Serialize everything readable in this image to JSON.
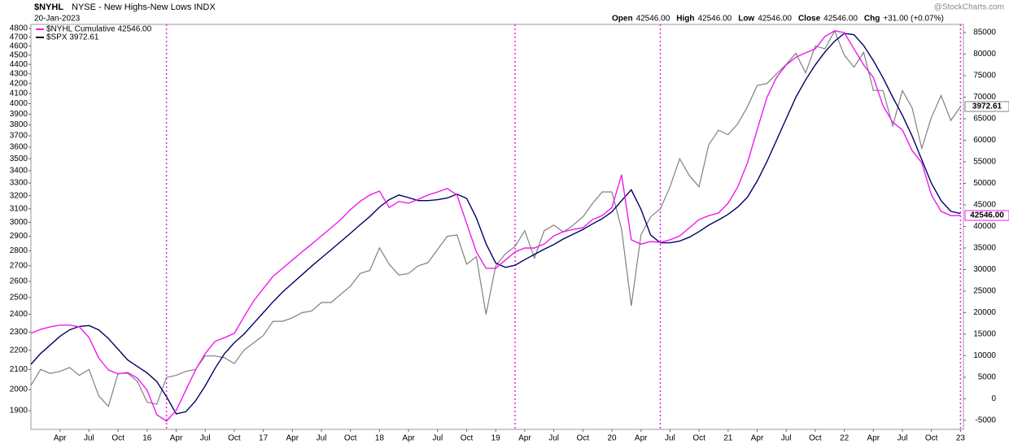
{
  "chart_data": {
    "type": "line",
    "title": "$NYHL",
    "subtitle": "NYSE - New Highs-New Lows INDX",
    "date": "20-Jan-2023",
    "source": "@StockCharts.com",
    "quote": [
      {
        "label": "Open",
        "value": "42546.00"
      },
      {
        "label": "High",
        "value": "42546.00"
      },
      {
        "label": "Low",
        "value": "42546.00"
      },
      {
        "label": "Close",
        "value": "42546.00"
      },
      {
        "label": "Chg",
        "value": "+31.00 (+0.07%)"
      }
    ],
    "x": [
      "2015-01",
      "2015-02",
      "2015-03",
      "2015-04",
      "2015-05",
      "2015-06",
      "2015-07",
      "2015-08",
      "2015-09",
      "2015-10",
      "2015-11",
      "2015-12",
      "2016-01",
      "2016-02",
      "2016-03",
      "2016-04",
      "2016-05",
      "2016-06",
      "2016-07",
      "2016-08",
      "2016-09",
      "2016-10",
      "2016-11",
      "2016-12",
      "2017-01",
      "2017-02",
      "2017-03",
      "2017-04",
      "2017-05",
      "2017-06",
      "2017-07",
      "2017-08",
      "2017-09",
      "2017-10",
      "2017-11",
      "2017-12",
      "2018-01",
      "2018-02",
      "2018-03",
      "2018-04",
      "2018-05",
      "2018-06",
      "2018-07",
      "2018-08",
      "2018-09",
      "2018-10",
      "2018-11",
      "2018-12",
      "2019-01",
      "2019-02",
      "2019-03",
      "2019-04",
      "2019-05",
      "2019-06",
      "2019-07",
      "2019-08",
      "2019-09",
      "2019-10",
      "2019-11",
      "2019-12",
      "2020-01",
      "2020-02",
      "2020-03",
      "2020-04",
      "2020-05",
      "2020-06",
      "2020-07",
      "2020-08",
      "2020-09",
      "2020-10",
      "2020-11",
      "2020-12",
      "2021-01",
      "2021-02",
      "2021-03",
      "2021-04",
      "2021-05",
      "2021-06",
      "2021-07",
      "2021-08",
      "2021-09",
      "2021-10",
      "2021-11",
      "2021-12",
      "2022-01",
      "2022-02",
      "2022-03",
      "2022-04",
      "2022-05",
      "2022-06",
      "2022-07",
      "2022-08",
      "2022-09",
      "2022-10",
      "2022-11",
      "2022-12",
      "2023-01"
    ],
    "series": [
      {
        "name": "$SPX 3972.61",
        "color": "#808080",
        "axis": "y",
        "last_label": "3972.61",
        "values": [
          2020,
          2100,
          2080,
          2090,
          2110,
          2070,
          2100,
          1970,
          1920,
          2080,
          2080,
          2040,
          1940,
          1930,
          2060,
          2070,
          2090,
          2100,
          2170,
          2170,
          2160,
          2130,
          2200,
          2240,
          2280,
          2360,
          2360,
          2380,
          2410,
          2420,
          2470,
          2470,
          2520,
          2570,
          2650,
          2670,
          2820,
          2710,
          2640,
          2650,
          2700,
          2720,
          2810,
          2900,
          2910,
          2710,
          2760,
          2400,
          2700,
          2780,
          2830,
          2940,
          2750,
          2940,
          2980,
          2930,
          2980,
          3040,
          3140,
          3230,
          3230,
          2950,
          2450,
          2910,
          3040,
          3100,
          3270,
          3500,
          3360,
          3270,
          3620,
          3750,
          3710,
          3810,
          3970,
          4180,
          4200,
          4300,
          4400,
          4520,
          4310,
          4600,
          4570,
          4770,
          4500,
          4370,
          4530,
          4130,
          4130,
          3790,
          4130,
          3960,
          3590,
          3870,
          4080,
          3840,
          3972.61
        ]
      },
      {
        "name": "$NYHL Cumulative 42546.00",
        "color": "#ee1aee",
        "axis": "y2",
        "last_label": "42546.00",
        "values": [
          15200,
          16100,
          16700,
          17100,
          17100,
          16700,
          14200,
          9500,
          6700,
          5800,
          6100,
          4800,
          2000,
          -3700,
          -5200,
          -2700,
          2000,
          6700,
          10500,
          13300,
          14200,
          15200,
          19000,
          22700,
          25600,
          28400,
          30300,
          32200,
          34100,
          35900,
          37800,
          39700,
          41600,
          43900,
          45800,
          47300,
          48200,
          44400,
          45800,
          45400,
          46300,
          47300,
          48000,
          48800,
          47300,
          40700,
          34100,
          30300,
          30300,
          32200,
          34100,
          35000,
          35000,
          35900,
          37800,
          38800,
          39300,
          39700,
          41600,
          42500,
          44400,
          52000,
          36900,
          35900,
          36500,
          36300,
          36900,
          37800,
          39700,
          41600,
          42500,
          43100,
          45400,
          49200,
          54800,
          62400,
          69900,
          74600,
          77500,
          79300,
          80300,
          81200,
          84100,
          85400,
          85000,
          81200,
          77500,
          74600,
          68000,
          64200,
          62400,
          57600,
          54800,
          47300,
          43500,
          42500,
          42546
        ]
      },
      {
        "color": "#000066",
        "axis": "y2",
        "values": [
          8000,
          10500,
          12500,
          14500,
          16000,
          16800,
          17000,
          16000,
          14000,
          11500,
          9000,
          7500,
          6000,
          4000,
          500,
          -3500,
          -3000,
          -500,
          3000,
          7000,
          10500,
          13000,
          15000,
          17500,
          20000,
          22500,
          24800,
          26800,
          28800,
          30800,
          32700,
          34600,
          36500,
          38400,
          40400,
          42300,
          44500,
          46200,
          47300,
          46700,
          46000,
          46000,
          46200,
          46600,
          47500,
          46500,
          42000,
          36000,
          31500,
          30500,
          31000,
          32300,
          33500,
          34700,
          35800,
          37100,
          38200,
          39300,
          40600,
          41800,
          43400,
          46000,
          48500,
          44000,
          38000,
          36200,
          36200,
          36600,
          37500,
          38800,
          40300,
          41500,
          42800,
          44500,
          46800,
          50500,
          55000,
          60000,
          65000,
          70000,
          74000,
          77500,
          80500,
          83000,
          84800,
          84500,
          82000,
          78500,
          74500,
          70000,
          65800,
          61000,
          55500,
          50000,
          46000,
          43500,
          43000
        ]
      }
    ],
    "yscale": "log",
    "ylim": [
      1816,
      4848
    ],
    "yticks": [
      1900,
      2000,
      2100,
      2200,
      2300,
      2400,
      2500,
      2600,
      2700,
      2800,
      2900,
      3000,
      3100,
      3200,
      3300,
      3400,
      3500,
      3600,
      3700,
      3800,
      3900,
      4000,
      4100,
      4200,
      4300,
      4400,
      4500,
      4600,
      4700,
      4800
    ],
    "y2lim": [
      -7100,
      86900
    ],
    "y2ticks": [
      -5000,
      0,
      5000,
      10000,
      15000,
      20000,
      25000,
      30000,
      35000,
      40000,
      45000,
      50000,
      55000,
      60000,
      65000,
      70000,
      75000,
      80000,
      85000
    ],
    "xticks": [
      {
        "value": "2015-04",
        "label": "Apr"
      },
      {
        "value": "2015-07",
        "label": "Jul"
      },
      {
        "value": "2015-10",
        "label": "Oct"
      },
      {
        "value": "2016-01",
        "label": "16"
      },
      {
        "value": "2016-04",
        "label": "Apr"
      },
      {
        "value": "2016-07",
        "label": "Jul"
      },
      {
        "value": "2016-10",
        "label": "Oct"
      },
      {
        "value": "2017-01",
        "label": "17"
      },
      {
        "value": "2017-04",
        "label": "Apr"
      },
      {
        "value": "2017-07",
        "label": "Jul"
      },
      {
        "value": "2017-10",
        "label": "Oct"
      },
      {
        "value": "2018-01",
        "label": "18"
      },
      {
        "value": "2018-04",
        "label": "Apr"
      },
      {
        "value": "2018-07",
        "label": "Jul"
      },
      {
        "value": "2018-10",
        "label": "Oct"
      },
      {
        "value": "2019-01",
        "label": "19"
      },
      {
        "value": "2019-04",
        "label": "Apr"
      },
      {
        "value": "2019-07",
        "label": "Jul"
      },
      {
        "value": "2019-10",
        "label": "Oct"
      },
      {
        "value": "2020-01",
        "label": "20"
      },
      {
        "value": "2020-04",
        "label": "Apr"
      },
      {
        "value": "2020-07",
        "label": "Jul"
      },
      {
        "value": "2020-10",
        "label": "Oct"
      },
      {
        "value": "2021-01",
        "label": "21"
      },
      {
        "value": "2021-04",
        "label": "Apr"
      },
      {
        "value": "2021-07",
        "label": "Jul"
      },
      {
        "value": "2021-10",
        "label": "Oct"
      },
      {
        "value": "2022-01",
        "label": "22"
      },
      {
        "value": "2022-04",
        "label": "Apr"
      },
      {
        "value": "2022-07",
        "label": "Jul"
      },
      {
        "value": "2022-10",
        "label": "Oct"
      },
      {
        "value": "2023-01",
        "label": "23"
      }
    ],
    "vlines": [
      "2016-03",
      "2019-03",
      "2020-06",
      "2023-01"
    ],
    "vline_color": "#ee1aee"
  }
}
